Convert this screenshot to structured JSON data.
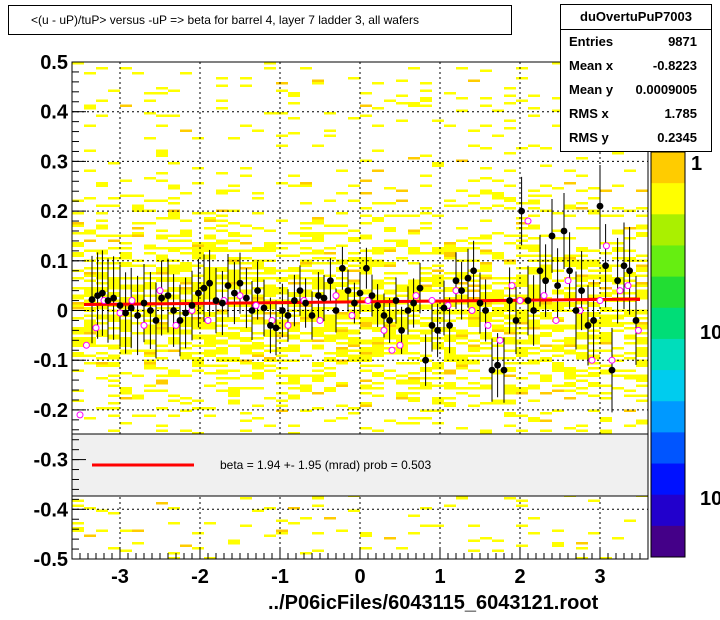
{
  "title": "<(u - uP)/tuP> versus  -uP => beta for barrel 4, layer 7 ladder 3, all wafers",
  "footer": "../P06icFiles/6043115_6043121.root",
  "stats": {
    "name": "duOvertuPuP7003",
    "rows": [
      {
        "label": "Entries",
        "value": "9871"
      },
      {
        "label": "Mean x",
        "value": "-0.8223"
      },
      {
        "label": "Mean y",
        "value": "0.0009005"
      },
      {
        "label": "RMS x",
        "value": "1.785"
      },
      {
        "label": "RMS y",
        "value": "0.2345"
      }
    ]
  },
  "legend": {
    "text": "beta =    1.94 +-  1.95 (mrad) prob = 0.503",
    "line_color": "#ff0000"
  },
  "palette_labels": [
    "1",
    "10",
    "10"
  ],
  "colors": {
    "fill": "#ffff00",
    "fill_dark": "#ffcc00",
    "mean_points": "#000000",
    "fit_line": "#ff0000",
    "magenta": "#ff00ff"
  },
  "chart_data": {
    "type": "scatter",
    "xlim": [
      -3.6,
      3.6
    ],
    "ylim": [
      -0.5,
      0.5
    ],
    "x_ticks": [
      "-3",
      "-2",
      "-1",
      "0",
      "1",
      "2",
      "3"
    ],
    "y_ticks": [
      "-0.5",
      "-0.4",
      "-0.3",
      "-0.2",
      "-0.1",
      "0",
      "0.1",
      "0.2",
      "0.3",
      "0.4",
      "0.5"
    ],
    "grid": true,
    "fit_line": {
      "x": [
        -3.45,
        3.5
      ],
      "y": [
        0.012,
        0.023
      ]
    },
    "black_points": [
      [
        -3.35,
        0.022
      ],
      [
        -3.28,
        0.03
      ],
      [
        -3.22,
        0.035
      ],
      [
        -3.15,
        0.02
      ],
      [
        -3.08,
        0.025
      ],
      [
        -3.0,
        0.01
      ],
      [
        -2.93,
        -0.005
      ],
      [
        -2.86,
        0.005
      ],
      [
        -2.78,
        -0.01
      ],
      [
        -2.7,
        0.015
      ],
      [
        -2.62,
        0.0
      ],
      [
        -2.55,
        -0.02
      ],
      [
        -2.48,
        0.025
      ],
      [
        -2.4,
        0.03
      ],
      [
        -2.33,
        0.0
      ],
      [
        -2.25,
        -0.02
      ],
      [
        -2.18,
        -0.005
      ],
      [
        -2.1,
        0.01
      ],
      [
        -2.02,
        0.035
      ],
      [
        -1.95,
        0.045
      ],
      [
        -1.88,
        0.055
      ],
      [
        -1.8,
        0.02
      ],
      [
        -1.72,
        0.015
      ],
      [
        -1.65,
        0.05
      ],
      [
        -1.57,
        0.035
      ],
      [
        -1.5,
        0.055
      ],
      [
        -1.42,
        0.025
      ],
      [
        -1.35,
        0.0
      ],
      [
        -1.28,
        0.04
      ],
      [
        -1.2,
        0.005
      ],
      [
        -1.12,
        -0.03
      ],
      [
        -1.05,
        -0.035
      ],
      [
        -0.97,
        0.0
      ],
      [
        -0.9,
        -0.01
      ],
      [
        -0.82,
        0.02
      ],
      [
        -0.75,
        0.04
      ],
      [
        -0.68,
        0.015
      ],
      [
        -0.6,
        -0.01
      ],
      [
        -0.52,
        0.03
      ],
      [
        -0.45,
        0.025
      ],
      [
        -0.37,
        0.06
      ],
      [
        -0.3,
        0.0
      ],
      [
        -0.22,
        0.085
      ],
      [
        -0.15,
        0.04
      ],
      [
        -0.07,
        0.015
      ],
      [
        0.0,
        0.035
      ],
      [
        0.08,
        0.085
      ],
      [
        0.15,
        0.03
      ],
      [
        0.22,
        0.01
      ],
      [
        0.3,
        -0.01
      ],
      [
        0.37,
        -0.02
      ],
      [
        0.45,
        0.02
      ],
      [
        0.52,
        -0.04
      ],
      [
        0.6,
        0.0
      ],
      [
        0.67,
        0.015
      ],
      [
        0.75,
        0.045
      ],
      [
        0.82,
        -0.1
      ],
      [
        0.9,
        -0.03
      ],
      [
        0.97,
        -0.04
      ],
      [
        1.05,
        0.005
      ],
      [
        1.12,
        -0.03
      ],
      [
        1.2,
        0.06
      ],
      [
        1.27,
        0.04
      ],
      [
        1.35,
        0.065
      ],
      [
        1.42,
        0.08
      ],
      [
        1.5,
        0.015
      ],
      [
        1.57,
        0.0
      ],
      [
        1.65,
        -0.12
      ],
      [
        1.72,
        -0.11
      ],
      [
        1.8,
        -0.12
      ],
      [
        1.87,
        0.02
      ],
      [
        1.95,
        -0.02
      ],
      [
        2.02,
        0.2
      ],
      [
        2.1,
        0.02
      ],
      [
        2.17,
        0.0
      ],
      [
        2.25,
        0.08
      ],
      [
        2.32,
        0.06
      ],
      [
        2.4,
        0.15
      ],
      [
        2.47,
        0.05
      ],
      [
        2.55,
        0.16
      ],
      [
        2.62,
        0.08
      ],
      [
        2.7,
        0.0
      ],
      [
        2.77,
        0.04
      ],
      [
        2.85,
        -0.03
      ],
      [
        2.92,
        -0.02
      ],
      [
        3.0,
        0.21
      ],
      [
        3.07,
        0.09
      ],
      [
        3.15,
        -0.12
      ],
      [
        3.22,
        0.06
      ],
      [
        3.3,
        0.09
      ],
      [
        3.37,
        0.08
      ],
      [
        3.45,
        -0.02
      ]
    ],
    "magenta_points": [
      [
        -3.5,
        -0.21
      ],
      [
        -3.42,
        -0.07
      ],
      [
        -3.3,
        -0.035
      ],
      [
        -3.2,
        0.02
      ],
      [
        -3.0,
        -0.005
      ],
      [
        -2.85,
        0.02
      ],
      [
        -2.7,
        -0.03
      ],
      [
        -2.5,
        0.04
      ],
      [
        -2.3,
        -0.03
      ],
      [
        -2.1,
        0.0
      ],
      [
        -1.9,
        -0.02
      ],
      [
        -1.7,
        0.02
      ],
      [
        -1.5,
        0.03
      ],
      [
        -1.3,
        0.01
      ],
      [
        -1.1,
        -0.02
      ],
      [
        -0.9,
        -0.03
      ],
      [
        -0.7,
        0.02
      ],
      [
        -0.5,
        -0.02
      ],
      [
        -0.3,
        0.03
      ],
      [
        -0.1,
        -0.01
      ],
      [
        0.1,
        0.02
      ],
      [
        0.3,
        -0.04
      ],
      [
        0.4,
        -0.08
      ],
      [
        0.5,
        -0.07
      ],
      [
        0.7,
        0.03
      ],
      [
        0.9,
        0.02
      ],
      [
        1.1,
        0.01
      ],
      [
        1.2,
        0.04
      ],
      [
        1.4,
        0.0
      ],
      [
        1.6,
        -0.03
      ],
      [
        1.75,
        -0.06
      ],
      [
        1.9,
        0.05
      ],
      [
        2.0,
        0.02
      ],
      [
        2.1,
        0.18
      ],
      [
        2.3,
        0.03
      ],
      [
        2.45,
        -0.02
      ],
      [
        2.6,
        0.06
      ],
      [
        2.75,
        0.0
      ],
      [
        2.9,
        -0.1
      ],
      [
        3.0,
        0.02
      ],
      [
        3.08,
        0.13
      ],
      [
        3.15,
        -0.1
      ],
      [
        3.25,
        0.04
      ],
      [
        3.35,
        0.05
      ],
      [
        3.48,
        -0.04
      ]
    ]
  }
}
